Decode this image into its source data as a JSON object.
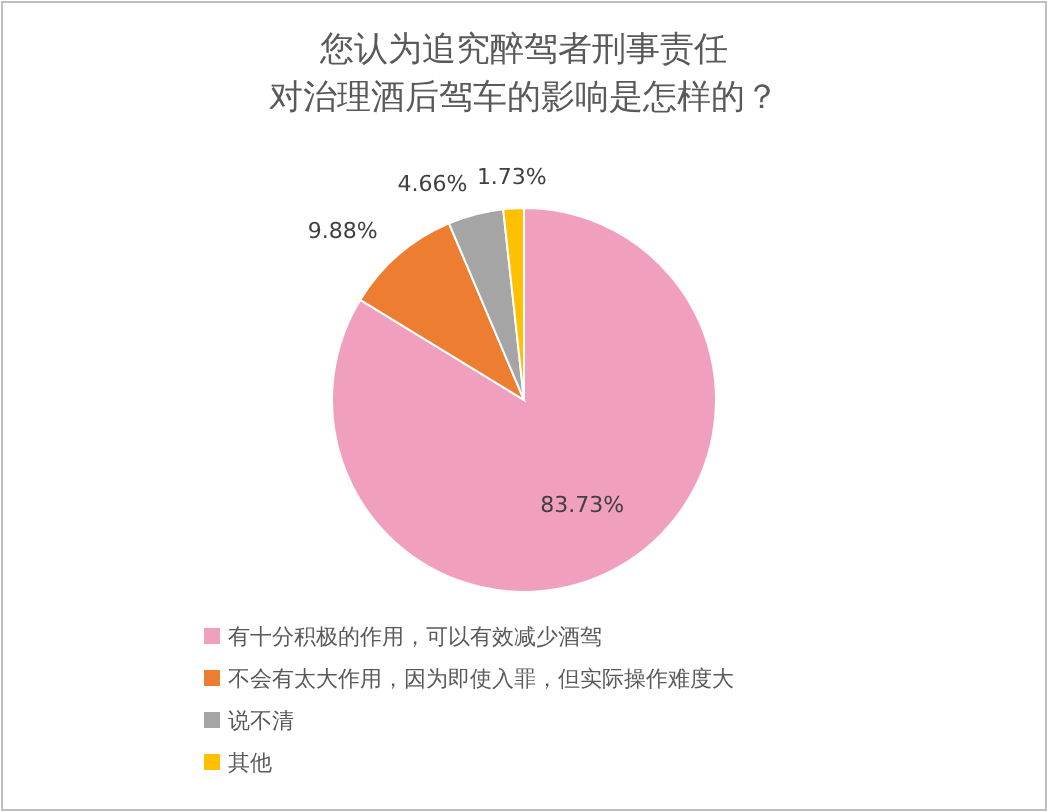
{
  "chart_data": {
    "type": "pie",
    "title": "您认为追究醉驾者刑事责任对治理酒后驾车的影响是怎样的？",
    "categories": [
      "有十分积极的作用，可以有效减少酒驾",
      "不会有太大作用，因为即使入罪，但实际操作难度大",
      "说不清",
      "其他"
    ],
    "values": [
      83.73,
      9.88,
      4.66,
      1.73
    ],
    "colors": [
      "#f09fbf",
      "#ed7d31",
      "#a5a5a5",
      "#ffc000"
    ],
    "value_labels": [
      "83.73%",
      "9.88%",
      "4.66%",
      "1.73%"
    ],
    "legend": "bottom"
  }
}
